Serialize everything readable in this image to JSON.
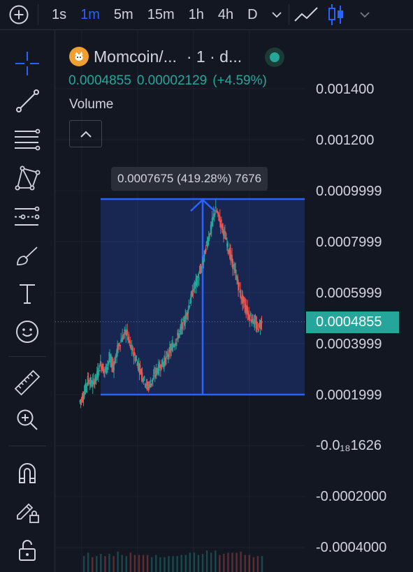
{
  "topbar": {
    "add_icon": "plus-circle-icon",
    "timeframes": [
      {
        "label": "1s",
        "active": false
      },
      {
        "label": "1m",
        "active": true
      },
      {
        "label": "5m",
        "active": false
      },
      {
        "label": "15m",
        "active": false
      },
      {
        "label": "1h",
        "active": false
      },
      {
        "label": "4h",
        "active": false
      },
      {
        "label": "D",
        "active": false
      }
    ],
    "more_icon": "chevron-down-icon",
    "chart_style_line_icon": "line-chart-icon",
    "chart_style_candles_icon": "candlestick-icon",
    "chart_style_more_icon": "chevron-down-icon"
  },
  "toolbar": {
    "tools": [
      "crosshair-icon",
      "trend-line-icon",
      "fib-retracement-icon",
      "pattern-icon",
      "prediction-icon",
      "brush-icon",
      "text-icon",
      "emoji-icon",
      "ruler-icon",
      "zoom-in-icon",
      "magnet-icon",
      "lock-drawing-icon",
      "unlock-icon"
    ]
  },
  "legend": {
    "symbol": "Momcoin/...",
    "interval": "· 1 · d...",
    "last": "0.0004855",
    "change": "0.00002129",
    "change_pct": "(+4.59%)",
    "volume_label": "Volume",
    "status_color": "#26a69a"
  },
  "measure": {
    "label": "0.0007675 (419.28%) 7676",
    "color": "#2962ff"
  },
  "price_axis": {
    "ticks": [
      "0.001400",
      "0.001200",
      "0.0009999",
      "0.0007999",
      "0.0005999",
      "0.0003999",
      "0.0001999",
      "-0.0₁₈1626",
      "-0.0002000",
      "-0.0004000"
    ],
    "current_price": "0.0004855",
    "current_color": "#26a69a"
  },
  "chart_data": {
    "type": "candlestick",
    "series": [
      {
        "values": [
          0.00017,
          0.0002,
          0.00026,
          0.00024,
          0.00027,
          0.00032,
          0.00029,
          0.00034,
          0.00031,
          0.00038,
          0.00042,
          0.00045,
          0.00039,
          0.00035,
          0.00031,
          0.00027,
          0.00023,
          0.00025,
          0.00029,
          0.00031,
          0.00033,
          0.00036,
          0.00039,
          0.00042,
          0.00046,
          0.0005,
          0.00056,
          0.00062,
          0.00066,
          0.00071,
          0.00079,
          0.00085,
          0.00093,
          0.00089,
          0.00084,
          0.00078,
          0.00072,
          0.00066,
          0.00059,
          0.00055,
          0.00051,
          0.00049,
          0.00046,
          0.00049
        ]
      }
    ],
    "ylim": [
      -0.0004,
      0.0014
    ],
    "up_color": "#26a69a",
    "down_color": "#ef5350",
    "measure_range": [
      0.0001999,
      0.000967
    ]
  }
}
